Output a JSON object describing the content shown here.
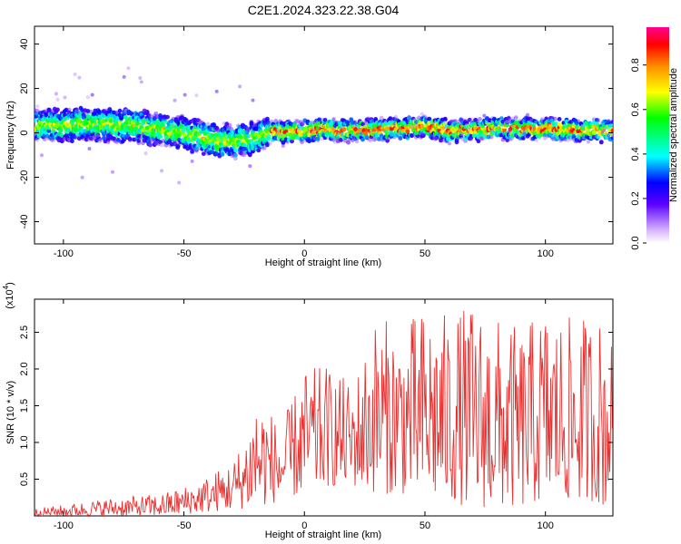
{
  "title": "C2E1.2024.323.22.38.G04",
  "colorbar": {
    "label": "Normalized spectral amplitude",
    "ticks": [
      "0.0",
      "0.2",
      "0.4",
      "0.6",
      "0.8"
    ],
    "tick_values": [
      0.0,
      0.2,
      0.4,
      0.6,
      0.8
    ],
    "range": [
      0,
      0.97
    ]
  },
  "chart_data": [
    {
      "type": "heatmap",
      "xlabel": "Height of straight line (km)",
      "ylabel": "Frequency (Hz)",
      "xlim": [
        -112,
        128
      ],
      "ylim": [
        -50,
        48
      ],
      "xticks": [
        -100,
        -50,
        0,
        50,
        100
      ],
      "xtick_labels": [
        "-100",
        "-50",
        "0",
        "50",
        "100"
      ],
      "yticks": [
        -40,
        -20,
        0,
        20,
        40
      ],
      "ytick_labels": [
        "-40",
        "-20",
        "0",
        "20",
        "40"
      ],
      "ridge": {
        "description_points_x": [
          -110,
          -90,
          -70,
          -50,
          -40,
          -30,
          -20,
          -15,
          0,
          20,
          40,
          50,
          60,
          80,
          100,
          120,
          128
        ],
        "description_points_y": [
          3,
          4,
          3,
          0,
          -3,
          -4,
          -2,
          0,
          1,
          1,
          2,
          3,
          1,
          2,
          2,
          1,
          1
        ],
        "peak_amplitude_range_km": [
          -15,
          128
        ],
        "peak_amplitude": 0.95
      }
    },
    {
      "type": "line",
      "xlabel": "Height of straight line (km)",
      "ylabel": "SNR (10 * v/v)",
      "y_multiplier_label": "(x10",
      "y_multiplier_exp": "4",
      "xlim": [
        -112,
        128
      ],
      "ylim": [
        0,
        2.95
      ],
      "xticks": [
        -100,
        -50,
        0,
        50,
        100
      ],
      "xtick_labels": [
        "-100",
        "-50",
        "0",
        "50",
        "100"
      ],
      "yticks": [
        0.5,
        1.0,
        1.5,
        2.0,
        2.5
      ],
      "ytick_labels": [
        "0.5",
        "1.0",
        "1.5",
        "2.0",
        "2.5"
      ],
      "series": [
        {
          "color": "#e8302f",
          "envelope_x": [
            -112,
            -100,
            -80,
            -60,
            -50,
            -40,
            -30,
            -25,
            -20,
            -15,
            -10,
            0,
            10,
            20,
            30,
            40,
            50,
            60,
            70,
            80,
            90,
            100,
            110,
            120,
            125,
            128
          ],
          "envelope_max": [
            0.1,
            0.15,
            0.25,
            0.3,
            0.4,
            0.55,
            0.75,
            1.05,
            1.7,
            1.5,
            1.2,
            2.0,
            2.05,
            1.8,
            2.75,
            2.6,
            2.85,
            2.75,
            2.9,
            2.7,
            2.55,
            2.85,
            2.7,
            2.75,
            2.7,
            2.3
          ],
          "envelope_min": [
            0.0,
            0.0,
            0.0,
            0.0,
            0.02,
            0.05,
            0.08,
            0.1,
            0.1,
            0.15,
            0.2,
            0.3,
            0.4,
            0.4,
            0.3,
            0.3,
            0.2,
            0.2,
            0.1,
            0.1,
            0.1,
            0.2,
            0.2,
            0.2,
            0.1,
            0.5
          ]
        }
      ]
    }
  ]
}
